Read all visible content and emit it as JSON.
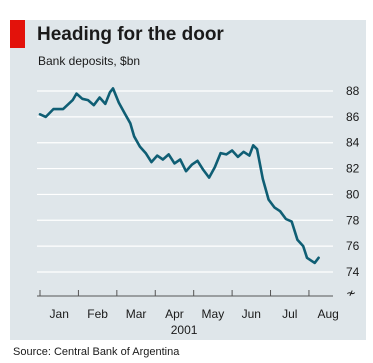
{
  "colors": {
    "background_panel": "#dfe6ea",
    "accent": "#e3120b",
    "line": "#0f5e74",
    "grid": "#ffffff"
  },
  "chart_data": {
    "type": "line",
    "title": "Heading for the door",
    "subtitle": "Bank deposits, $bn",
    "source": "Source: Central Bank of Argentina",
    "year_label": "2001",
    "y_axis_side": "right",
    "y_axis_break_symbol": "≁",
    "ylim": [
      74,
      88
    ],
    "yticks": [
      74,
      76,
      78,
      80,
      82,
      84,
      86,
      88
    ],
    "x_tick_labels": [
      "Jan",
      "Feb",
      "Mar",
      "Apr",
      "May",
      "Jun",
      "Jul",
      "Aug"
    ],
    "x_range_months": [
      0,
      7.6
    ],
    "grid": true,
    "series": [
      {
        "x": [
          0,
          0.15,
          0.35,
          0.6,
          0.85,
          0.95,
          1.1,
          1.25,
          1.4,
          1.55,
          1.7,
          1.82,
          1.9,
          2.05,
          2.2,
          2.35,
          2.45,
          2.6,
          2.75,
          2.9,
          3.05,
          3.2,
          3.35,
          3.5,
          3.65,
          3.8,
          3.95,
          4.1,
          4.25,
          4.4,
          4.55,
          4.7,
          4.85,
          5.0,
          5.15,
          5.3,
          5.45,
          5.55,
          5.65,
          5.8,
          5.95,
          6.1,
          6.25,
          6.4,
          6.55,
          6.7,
          6.85,
          6.95,
          7.05,
          7.15,
          7.25
        ],
        "y": [
          86.2,
          86.0,
          86.6,
          86.6,
          87.3,
          87.8,
          87.4,
          87.3,
          86.9,
          87.5,
          87.0,
          87.9,
          88.2,
          87.1,
          86.3,
          85.5,
          84.5,
          83.7,
          83.2,
          82.5,
          83.0,
          82.7,
          83.1,
          82.4,
          82.7,
          81.8,
          82.3,
          82.6,
          81.9,
          81.3,
          82.1,
          83.2,
          83.1,
          83.4,
          82.9,
          83.3,
          83.0,
          83.8,
          83.5,
          81.2,
          79.6,
          79.0,
          78.7,
          78.1,
          77.9,
          76.5,
          76.0,
          75.1,
          74.9,
          74.7,
          75.1
        ]
      }
    ]
  }
}
